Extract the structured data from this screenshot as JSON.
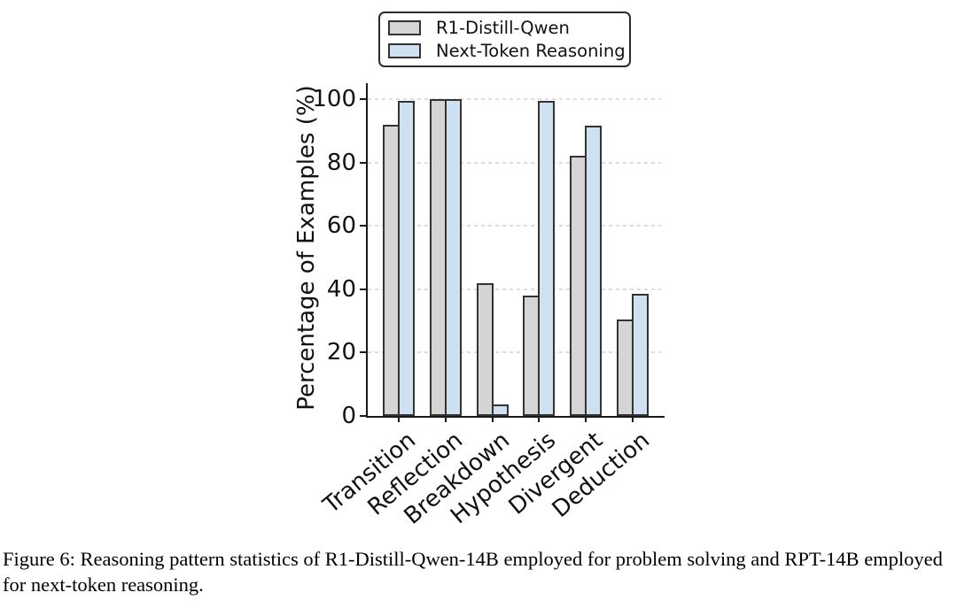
{
  "figure": {
    "caption": "Figure 6: Reasoning pattern statistics of R1-Distill-Qwen-14B employed for problem solving and RPT-14B employed for next-token reasoning."
  },
  "chart_data": {
    "type": "bar",
    "categories": [
      "Transition",
      "Reflection",
      "Breakdown",
      "Hypothesis",
      "Divergent",
      "Deduction"
    ],
    "series": [
      {
        "name": "R1-Distill-Qwen",
        "color": "#d5d5d5",
        "values": [
          92,
          100,
          42,
          38,
          82,
          30.5
        ]
      },
      {
        "name": "Next-Token Reasoning",
        "color": "#cfe1f1",
        "values": [
          99.5,
          100,
          3.5,
          99.5,
          91.5,
          38.5
        ]
      }
    ],
    "ylabel": "Percentage of Examples (%)",
    "yticks": [
      0,
      20,
      40,
      60,
      80,
      100
    ],
    "ylim": [
      0,
      105
    ],
    "grid": "horizontal-dashed",
    "legend_position": "top-center",
    "colors": {
      "bar_edge": "#333333",
      "axis": "#1a1a1a",
      "gridline": "#dcdcdc"
    }
  }
}
